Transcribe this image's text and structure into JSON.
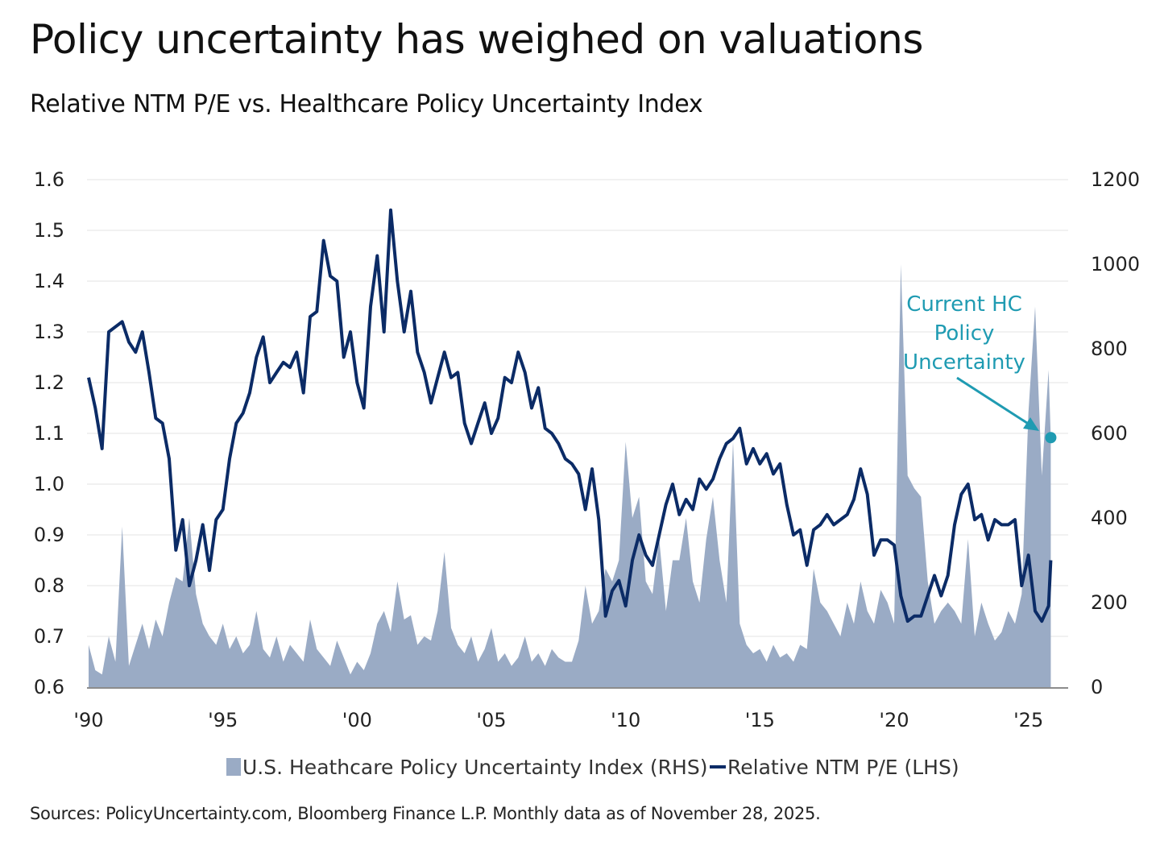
{
  "title": "Policy uncertainty has weighed on valuations",
  "subtitle": "Relative NTM P/E vs. Healthcare Policy Uncertainty Index",
  "sources": "Sources: PolicyUncertainty.com, Bloomberg Finance L.P. Monthly data as of November 28, 2025.",
  "chart_data": {
    "type": "line+area",
    "title": "Policy uncertainty has weighed on valuations",
    "subtitle": "Relative NTM P/E vs. Healthcare Policy Uncertainty Index",
    "x_tick_labels": [
      "'90",
      "'95",
      "'00",
      "'05",
      "'10",
      "'15",
      "'20",
      "'25"
    ],
    "x_tick_years": [
      1990,
      1995,
      2000,
      2005,
      2010,
      2015,
      2020,
      2025
    ],
    "y_left": {
      "range": [
        0.6,
        1.6
      ],
      "ticks": [
        "0.6",
        "0.7",
        "0.8",
        "0.9",
        "1.0",
        "1.1",
        "1.2",
        "1.3",
        "1.4",
        "1.5",
        "1.6"
      ]
    },
    "y_right": {
      "range": [
        0,
        1200
      ],
      "ticks": [
        "0",
        "200",
        "400",
        "600",
        "800",
        "1000",
        "1200"
      ]
    },
    "grid": true,
    "legend_placement": "bottom",
    "colors": {
      "uncertainty_area": "#9aabc5",
      "pe_line": "#0b2b66",
      "annotation": "#1f9bb2",
      "grid": "#e3e3e3"
    },
    "x": [
      "1990-01",
      "1990-04",
      "1990-07",
      "1990-10",
      "1991-01",
      "1991-04",
      "1991-07",
      "1991-10",
      "1992-01",
      "1992-04",
      "1992-07",
      "1992-10",
      "1993-01",
      "1993-04",
      "1993-07",
      "1993-10",
      "1994-01",
      "1994-04",
      "1994-07",
      "1994-10",
      "1995-01",
      "1995-04",
      "1995-07",
      "1995-10",
      "1996-01",
      "1996-04",
      "1996-07",
      "1996-10",
      "1997-01",
      "1997-04",
      "1997-07",
      "1997-10",
      "1998-01",
      "1998-04",
      "1998-07",
      "1998-10",
      "1999-01",
      "1999-04",
      "1999-07",
      "1999-10",
      "2000-01",
      "2000-04",
      "2000-07",
      "2000-10",
      "2001-01",
      "2001-04",
      "2001-07",
      "2001-10",
      "2002-01",
      "2002-04",
      "2002-07",
      "2002-10",
      "2003-01",
      "2003-04",
      "2003-07",
      "2003-10",
      "2004-01",
      "2004-04",
      "2004-07",
      "2004-10",
      "2005-01",
      "2005-04",
      "2005-07",
      "2005-10",
      "2006-01",
      "2006-04",
      "2006-07",
      "2006-10",
      "2007-01",
      "2007-04",
      "2007-07",
      "2007-10",
      "2008-01",
      "2008-04",
      "2008-07",
      "2008-10",
      "2009-01",
      "2009-04",
      "2009-07",
      "2009-10",
      "2010-01",
      "2010-04",
      "2010-07",
      "2010-10",
      "2011-01",
      "2011-04",
      "2011-07",
      "2011-10",
      "2012-01",
      "2012-04",
      "2012-07",
      "2012-10",
      "2013-01",
      "2013-04",
      "2013-07",
      "2013-10",
      "2014-01",
      "2014-04",
      "2014-07",
      "2014-10",
      "2015-01",
      "2015-04",
      "2015-07",
      "2015-10",
      "2016-01",
      "2016-04",
      "2016-07",
      "2016-10",
      "2017-01",
      "2017-04",
      "2017-07",
      "2017-10",
      "2018-01",
      "2018-04",
      "2018-07",
      "2018-10",
      "2019-01",
      "2019-04",
      "2019-07",
      "2019-10",
      "2020-01",
      "2020-04",
      "2020-07",
      "2020-10",
      "2021-01",
      "2021-04",
      "2021-07",
      "2021-10",
      "2022-01",
      "2022-04",
      "2022-07",
      "2022-10",
      "2023-01",
      "2023-04",
      "2023-07",
      "2023-10",
      "2024-01",
      "2024-04",
      "2024-07",
      "2024-10",
      "2025-01",
      "2025-04",
      "2025-07",
      "2025-10",
      "2025-11"
    ],
    "series": [
      {
        "name": "U.S. Heathcare Policy Uncertainty Index (RHS)",
        "axis": "right",
        "style": "area",
        "values": [
          100,
          40,
          30,
          120,
          60,
          380,
          50,
          100,
          150,
          90,
          160,
          120,
          200,
          260,
          250,
          400,
          220,
          150,
          120,
          100,
          150,
          90,
          120,
          80,
          100,
          180,
          90,
          70,
          120,
          60,
          100,
          80,
          60,
          160,
          90,
          70,
          50,
          110,
          70,
          30,
          60,
          40,
          80,
          150,
          180,
          130,
          250,
          160,
          170,
          100,
          120,
          110,
          180,
          320,
          140,
          100,
          80,
          120,
          60,
          90,
          140,
          60,
          80,
          50,
          70,
          120,
          60,
          80,
          50,
          90,
          70,
          60,
          60,
          110,
          240,
          150,
          180,
          280,
          250,
          300,
          580,
          400,
          450,
          250,
          220,
          350,
          180,
          300,
          300,
          400,
          250,
          200,
          350,
          450,
          300,
          200,
          580,
          150,
          100,
          80,
          90,
          60,
          100,
          70,
          80,
          60,
          100,
          90,
          280,
          200,
          180,
          150,
          120,
          200,
          150,
          250,
          180,
          150,
          230,
          200,
          150,
          1000,
          500,
          470,
          450,
          250,
          150,
          180,
          200,
          180,
          150,
          350,
          120,
          200,
          150,
          110,
          130,
          180,
          150,
          220,
          650,
          900,
          500,
          750,
          590
        ]
      },
      {
        "name": "Relative NTM P/E (LHS)",
        "axis": "left",
        "style": "line",
        "values": [
          1.21,
          1.15,
          1.07,
          1.3,
          1.31,
          1.32,
          1.28,
          1.26,
          1.3,
          1.22,
          1.13,
          1.12,
          1.05,
          0.87,
          0.93,
          0.8,
          0.85,
          0.92,
          0.83,
          0.93,
          0.95,
          1.05,
          1.12,
          1.14,
          1.18,
          1.25,
          1.29,
          1.2,
          1.22,
          1.24,
          1.23,
          1.26,
          1.18,
          1.33,
          1.34,
          1.48,
          1.41,
          1.4,
          1.25,
          1.3,
          1.2,
          1.15,
          1.35,
          1.45,
          1.3,
          1.54,
          1.4,
          1.3,
          1.38,
          1.26,
          1.22,
          1.16,
          1.21,
          1.26,
          1.21,
          1.22,
          1.12,
          1.08,
          1.12,
          1.16,
          1.1,
          1.13,
          1.21,
          1.2,
          1.26,
          1.22,
          1.15,
          1.19,
          1.11,
          1.1,
          1.08,
          1.05,
          1.04,
          1.02,
          0.95,
          1.03,
          0.93,
          0.74,
          0.79,
          0.81,
          0.76,
          0.85,
          0.9,
          0.86,
          0.84,
          0.9,
          0.96,
          1.0,
          0.94,
          0.97,
          0.95,
          1.01,
          0.99,
          1.01,
          1.05,
          1.08,
          1.09,
          1.11,
          1.04,
          1.07,
          1.04,
          1.06,
          1.02,
          1.04,
          0.96,
          0.9,
          0.91,
          0.84,
          0.91,
          0.92,
          0.94,
          0.92,
          0.93,
          0.94,
          0.97,
          1.03,
          0.98,
          0.86,
          0.89,
          0.89,
          0.88,
          0.78,
          0.73,
          0.74,
          0.74,
          0.78,
          0.82,
          0.78,
          0.82,
          0.92,
          0.98,
          1.0,
          0.93,
          0.94,
          0.89,
          0.93,
          0.92,
          0.92,
          0.93,
          0.8,
          0.86,
          0.75,
          0.73,
          0.76,
          0.85
        ]
      }
    ],
    "legend": [
      "U.S. Heathcare Policy Uncertainty Index (RHS)",
      "Relative NTM P/E (LHS)"
    ],
    "annotation": {
      "lines": [
        "Current HC",
        "Policy",
        "Uncertainty"
      ],
      "marker_value": 590,
      "marker_date": "2025-11"
    }
  }
}
